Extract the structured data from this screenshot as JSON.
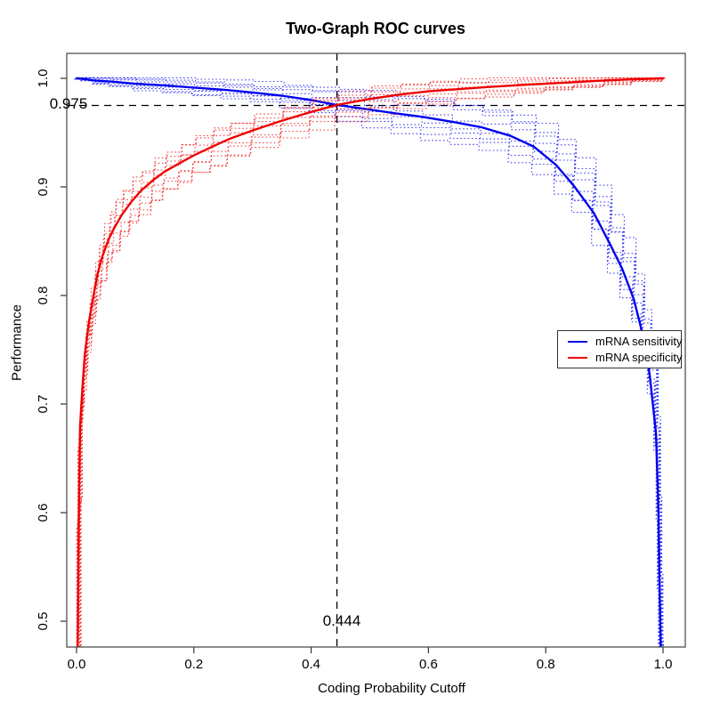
{
  "title": "Two-Graph ROC curves",
  "axis_labels": {
    "x": "Coding Probability Cutoff",
    "y": "Performance"
  },
  "annotations": {
    "hline_label": "0.975",
    "hline_value": 0.975,
    "vline_label": "0.444",
    "vline_value": 0.444
  },
  "legend": {
    "items": [
      {
        "label": "mRNA sensitivity",
        "color": "#0000ee"
      },
      {
        "label": "mRNA specificity",
        "color": "#ee0000"
      }
    ]
  },
  "chart_data": {
    "type": "line",
    "title": "Two-Graph ROC curves",
    "xlabel": "Coding Probability Cutoff",
    "ylabel": "Performance",
    "xlim": [
      0.0,
      1.0
    ],
    "ylim": [
      0.5,
      1.0
    ],
    "x_ticks": [
      0.0,
      0.2,
      0.4,
      0.6,
      0.8,
      1.0
    ],
    "y_ticks": [
      0.5,
      0.6,
      0.7,
      0.8,
      0.9,
      1.0
    ],
    "grid": false,
    "legend_position": "right-middle",
    "crossing_point": {
      "cutoff": 0.444,
      "performance": 0.975
    },
    "reference_lines": {
      "horizontal": 0.975,
      "vertical": 0.444,
      "style": "dashed",
      "color": "#000000"
    },
    "replicate_style": "dotted",
    "replicate_offsets": [
      -1.8,
      -1.35,
      -0.9,
      -0.45,
      0.45,
      0.9,
      1.35,
      1.8
    ],
    "series": [
      {
        "name": "mRNA sensitivity",
        "color": "#0000ee",
        "x": [
          0.0,
          0.01,
          0.03,
          0.06,
          0.1,
          0.15,
          0.2,
          0.25,
          0.3,
          0.35,
          0.4,
          0.444,
          0.49,
          0.54,
          0.59,
          0.64,
          0.69,
          0.74,
          0.78,
          0.818,
          0.848,
          0.882,
          0.909,
          0.93,
          0.95,
          0.965,
          0.977,
          0.988,
          0.992,
          0.994,
          0.996,
          0.997
        ],
        "y": [
          1.0,
          0.9995,
          0.998,
          0.997,
          0.995,
          0.9935,
          0.9915,
          0.9895,
          0.987,
          0.984,
          0.98,
          0.9755,
          0.972,
          0.968,
          0.9645,
          0.96,
          0.955,
          0.947,
          0.937,
          0.92,
          0.901,
          0.876,
          0.848,
          0.825,
          0.797,
          0.765,
          0.728,
          0.673,
          0.605,
          0.537,
          0.478,
          0.462
        ],
        "spread": [
          0.0005,
          0.001,
          0.002,
          0.003,
          0.0035,
          0.004,
          0.0045,
          0.005,
          0.0055,
          0.006,
          0.007,
          0.008,
          0.009,
          0.009,
          0.01,
          0.01,
          0.011,
          0.012,
          0.013,
          0.014,
          0.014,
          0.015,
          0.015,
          0.014,
          0.013,
          0.012,
          0.01,
          0.008,
          0.006,
          0.004,
          0.002,
          0.001
        ]
      },
      {
        "name": "mRNA specificity",
        "color": "#ee0000",
        "x": [
          0.002,
          0.004,
          0.006,
          0.01,
          0.014,
          0.021,
          0.029,
          0.036,
          0.044,
          0.055,
          0.064,
          0.077,
          0.093,
          0.109,
          0.13,
          0.15,
          0.176,
          0.2,
          0.231,
          0.26,
          0.3,
          0.35,
          0.4,
          0.444,
          0.5,
          0.55,
          0.6,
          0.65,
          0.7,
          0.75,
          0.8,
          0.85,
          0.9,
          0.95,
          1.0
        ],
        "y": [
          0.47,
          0.6,
          0.68,
          0.715,
          0.745,
          0.775,
          0.8,
          0.82,
          0.836,
          0.852,
          0.862,
          0.874,
          0.886,
          0.896,
          0.906,
          0.914,
          0.922,
          0.929,
          0.937,
          0.944,
          0.952,
          0.961,
          0.969,
          0.9755,
          0.981,
          0.985,
          0.988,
          0.99,
          0.992,
          0.9936,
          0.995,
          0.9965,
          0.998,
          0.9992,
          1.0
        ],
        "spread": [
          0.001,
          0.008,
          0.012,
          0.015,
          0.016,
          0.016,
          0.016,
          0.015,
          0.015,
          0.014,
          0.014,
          0.013,
          0.013,
          0.012,
          0.012,
          0.011,
          0.011,
          0.01,
          0.01,
          0.009,
          0.009,
          0.008,
          0.008,
          0.0075,
          0.007,
          0.006,
          0.006,
          0.005,
          0.005,
          0.004,
          0.0035,
          0.003,
          0.002,
          0.0012,
          0.0003
        ]
      }
    ]
  }
}
